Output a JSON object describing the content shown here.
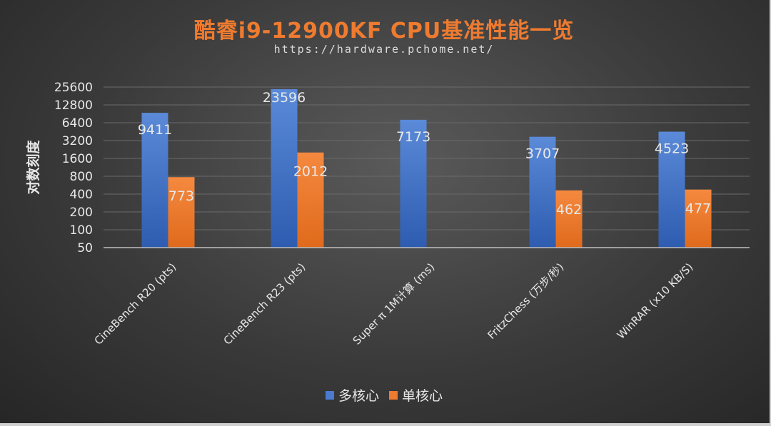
{
  "header": {
    "title": "酷睿i9-12900KF CPU基准性能一览",
    "subtitle": "https://hardware.pchome.net/"
  },
  "colors": {
    "title": "#ee7b30",
    "subtitle": "#dcdcdc",
    "multi": "#4a7bd0",
    "single": "#ee7b30",
    "text": "#e8e8e8",
    "grid": "#6a6a6a",
    "axis": "#bfbfbf"
  },
  "chart_data": {
    "type": "bar",
    "yscale": "log2",
    "ylabel": "对数刻度",
    "ylim": [
      50,
      25600
    ],
    "yticks": [
      50,
      100,
      200,
      400,
      800,
      1600,
      3200,
      6400,
      12800,
      25600
    ],
    "categories": [
      "CineBench R20 (pts)",
      "CineBench R23 (pts)",
      "Super π 1M计算 (ms)",
      "FritzChess (万步/秒)",
      "WinRAR (x10 KB/S)"
    ],
    "series": [
      {
        "name": "多核心",
        "values": [
          9411,
          23596,
          7173,
          3707,
          4523
        ]
      },
      {
        "name": "单核心",
        "values": [
          773,
          2012,
          null,
          462,
          477
        ]
      }
    ],
    "data_labels": [
      [
        "9411",
        "23596",
        "7173",
        "3707",
        "4523"
      ],
      [
        "773",
        "2012",
        "",
        "462",
        "477"
      ]
    ],
    "legend_position": "bottom",
    "grid": true
  }
}
